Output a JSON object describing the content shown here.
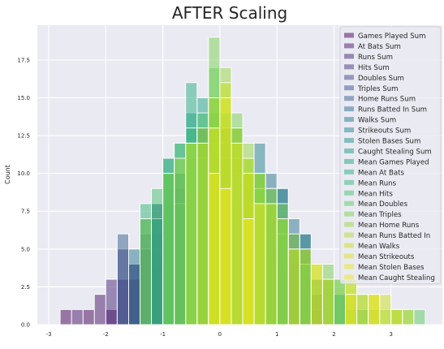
{
  "chart_data": {
    "type": "bar",
    "title": "AFTER Scaling",
    "xlabel": "",
    "ylabel": "Count",
    "xlim": [
      -3.2,
      3.9
    ],
    "ylim": [
      0,
      19.8
    ],
    "x_ticks": [
      -3,
      -2,
      -1,
      0,
      1,
      2,
      3
    ],
    "y_ticks": [
      0.0,
      2.5,
      5.0,
      7.5,
      10.0,
      12.5,
      15.0,
      17.5
    ],
    "y_tick_labels": [
      "0.0",
      "2.5",
      "5.0",
      "7.5",
      "10.0",
      "12.5",
      "15.0",
      "17.5"
    ],
    "grid": true,
    "background": "#eaeaf2",
    "legend_position": "upper right",
    "series": [
      {
        "name": "Games Played Sum",
        "color": "#440154",
        "bars": [
          [
            -2.8,
            -2.6,
            1
          ],
          [
            -2.4,
            -2.2,
            1
          ],
          [
            -2.0,
            -1.8,
            1
          ],
          [
            -1.6,
            -1.4,
            3
          ],
          [
            -1.2,
            -1.0,
            4
          ],
          [
            -0.8,
            -0.6,
            8
          ],
          [
            -0.4,
            -0.2,
            13
          ],
          [
            0.0,
            0.2,
            10
          ],
          [
            0.4,
            0.6,
            6
          ],
          [
            0.8,
            1.0,
            5
          ],
          [
            1.2,
            1.4,
            3
          ],
          [
            1.6,
            1.8,
            2
          ]
        ]
      },
      {
        "name": "At Bats Sum",
        "color": "#471365",
        "bars": [
          [
            -2.6,
            -2.4,
            1
          ],
          [
            -2.2,
            -2.0,
            2
          ],
          [
            -1.8,
            -1.6,
            3
          ],
          [
            -1.4,
            -1.2,
            5
          ],
          [
            -1.0,
            -0.8,
            6
          ],
          [
            -0.6,
            -0.4,
            9
          ],
          [
            -0.2,
            0.0,
            11
          ],
          [
            0.2,
            0.4,
            8
          ],
          [
            0.6,
            0.8,
            5
          ],
          [
            1.0,
            1.2,
            4
          ],
          [
            1.4,
            1.6,
            2
          ]
        ]
      },
      {
        "name": "Runs Sum",
        "color": "#482475",
        "bars": [
          [
            -2.0,
            -1.8,
            3
          ],
          [
            -1.6,
            -1.4,
            4
          ],
          [
            -1.2,
            -1.0,
            6
          ],
          [
            -0.8,
            -0.6,
            9
          ],
          [
            -0.4,
            -0.2,
            12
          ],
          [
            0.0,
            0.2,
            13
          ],
          [
            0.4,
            0.6,
            9
          ],
          [
            0.8,
            1.0,
            7
          ],
          [
            1.2,
            1.4,
            4
          ],
          [
            1.6,
            1.8,
            1
          ]
        ]
      },
      {
        "name": "Hits Sum",
        "color": "#463480",
        "bars": [
          [
            -1.8,
            -1.6,
            5
          ],
          [
            -1.4,
            -1.2,
            6
          ],
          [
            -1.0,
            -0.8,
            8
          ],
          [
            -0.6,
            -0.4,
            10
          ],
          [
            -0.2,
            0.0,
            14
          ],
          [
            0.2,
            0.4,
            11
          ],
          [
            0.6,
            0.8,
            7
          ],
          [
            1.0,
            1.2,
            6
          ],
          [
            1.4,
            1.6,
            3
          ]
        ]
      },
      {
        "name": "Doubles Sum",
        "color": "#414487",
        "bars": [
          [
            -1.6,
            -1.4,
            4
          ],
          [
            -1.2,
            -1.0,
            7
          ],
          [
            -0.8,
            -0.6,
            9
          ],
          [
            -0.4,
            -0.2,
            11
          ],
          [
            0.0,
            0.2,
            12
          ],
          [
            0.4,
            0.6,
            8
          ],
          [
            0.8,
            1.0,
            6
          ],
          [
            1.2,
            1.4,
            4
          ],
          [
            1.6,
            1.8,
            2
          ]
        ]
      },
      {
        "name": "Triples Sum",
        "color": "#3b528b",
        "bars": [
          [
            -1.4,
            -1.2,
            5
          ],
          [
            -1.0,
            -0.8,
            9
          ],
          [
            -0.6,
            -0.4,
            10
          ],
          [
            -0.2,
            0.0,
            12
          ],
          [
            0.2,
            0.4,
            13
          ],
          [
            0.6,
            0.8,
            9
          ],
          [
            1.0,
            1.2,
            7
          ],
          [
            1.4,
            1.6,
            5
          ]
        ]
      },
      {
        "name": "Home Runs Sum",
        "color": "#355f8d",
        "bars": [
          [
            -1.8,
            -1.6,
            6
          ],
          [
            -1.2,
            -1.0,
            8
          ],
          [
            -0.8,
            -0.6,
            10
          ],
          [
            -0.4,
            -0.2,
            12
          ],
          [
            0.0,
            0.2,
            11
          ],
          [
            0.4,
            0.6,
            10
          ],
          [
            0.8,
            1.0,
            8
          ],
          [
            1.2,
            1.4,
            6
          ]
        ]
      },
      {
        "name": "Runs Batted In Sum",
        "color": "#2f6c8e",
        "bars": [
          [
            -1.4,
            -1.2,
            7
          ],
          [
            -1.0,
            -0.8,
            10
          ],
          [
            -0.6,
            -0.4,
            11
          ],
          [
            -0.2,
            0.0,
            13
          ],
          [
            0.2,
            0.4,
            12
          ],
          [
            0.6,
            0.8,
            10
          ],
          [
            1.0,
            1.2,
            9
          ],
          [
            1.4,
            1.6,
            6
          ]
        ]
      },
      {
        "name": "Walks Sum",
        "color": "#2a788e",
        "bars": [
          [
            -1.6,
            -1.4,
            5
          ],
          [
            -1.2,
            -1.0,
            8
          ],
          [
            -0.8,
            -0.6,
            10
          ],
          [
            -0.4,
            -0.2,
            11
          ],
          [
            0.0,
            0.2,
            12
          ],
          [
            0.4,
            0.6,
            10
          ],
          [
            0.8,
            1.0,
            10
          ],
          [
            1.2,
            1.4,
            7
          ]
        ]
      },
      {
        "name": "Strikeouts Sum",
        "color": "#25838e",
        "bars": [
          [
            -1.0,
            -0.8,
            10
          ],
          [
            -0.6,
            -0.4,
            11
          ],
          [
            -0.2,
            0.0,
            12
          ],
          [
            0.2,
            0.4,
            10
          ],
          [
            0.6,
            0.8,
            12
          ],
          [
            1.0,
            1.2,
            9
          ],
          [
            1.4,
            1.6,
            6
          ],
          [
            1.8,
            2.0,
            3
          ]
        ]
      },
      {
        "name": "Stolen Bases Sum",
        "color": "#21918c",
        "bars": [
          [
            -1.2,
            -1.0,
            7
          ],
          [
            -0.8,
            -0.6,
            8
          ],
          [
            -0.4,
            -0.2,
            12
          ],
          [
            0.0,
            0.2,
            11
          ],
          [
            0.4,
            0.6,
            10
          ],
          [
            0.8,
            1.0,
            9
          ],
          [
            1.2,
            1.4,
            5
          ],
          [
            1.6,
            1.8,
            3
          ],
          [
            2.0,
            2.2,
            2
          ]
        ]
      },
      {
        "name": "Caught Stealing Sum",
        "color": "#1e9c89",
        "bars": [
          [
            -1.0,
            -0.8,
            11
          ],
          [
            -0.6,
            -0.4,
            14
          ],
          [
            -0.2,
            0.0,
            13
          ],
          [
            0.2,
            0.4,
            11
          ],
          [
            0.6,
            0.8,
            9
          ],
          [
            1.0,
            1.2,
            7
          ],
          [
            1.4,
            1.6,
            4
          ],
          [
            1.8,
            2.0,
            3
          ],
          [
            2.2,
            2.4,
            1
          ]
        ]
      },
      {
        "name": "Mean Games Played",
        "color": "#20a486",
        "bars": [
          [
            -0.8,
            -0.6,
            12
          ],
          [
            -0.4,
            -0.2,
            15
          ],
          [
            0.0,
            0.2,
            14
          ],
          [
            0.4,
            0.6,
            10
          ],
          [
            0.8,
            1.0,
            8
          ],
          [
            1.2,
            1.4,
            5
          ],
          [
            1.6,
            1.8,
            3
          ],
          [
            2.0,
            2.2,
            2
          ],
          [
            2.4,
            2.6,
            1
          ]
        ]
      },
      {
        "name": "Mean At Bats",
        "color": "#28ae80",
        "bars": [
          [
            -0.6,
            -0.4,
            16
          ],
          [
            -0.2,
            0.0,
            14
          ],
          [
            0.2,
            0.4,
            11
          ],
          [
            0.6,
            0.8,
            9
          ],
          [
            1.0,
            1.2,
            6
          ],
          [
            1.4,
            1.6,
            4
          ],
          [
            1.8,
            2.0,
            3
          ],
          [
            2.6,
            2.8,
            1
          ],
          [
            3.0,
            3.2,
            1
          ]
        ]
      },
      {
        "name": "Mean Runs",
        "color": "#35b779",
        "bars": [
          [
            -1.4,
            -1.2,
            8
          ],
          [
            -1.0,
            -0.8,
            11
          ],
          [
            -0.6,
            -0.4,
            13
          ],
          [
            -0.2,
            0.0,
            15
          ],
          [
            0.2,
            0.4,
            12
          ],
          [
            0.6,
            0.8,
            10
          ],
          [
            1.0,
            1.2,
            7
          ],
          [
            1.8,
            2.0,
            3
          ],
          [
            2.2,
            2.4,
            2
          ]
        ]
      },
      {
        "name": "Mean Hits",
        "color": "#47c16e",
        "bars": [
          [
            -1.2,
            -1.0,
            9
          ],
          [
            -0.8,
            -0.6,
            12
          ],
          [
            -0.4,
            -0.2,
            14
          ],
          [
            0.0,
            0.2,
            13
          ],
          [
            0.4,
            0.6,
            11
          ],
          [
            0.8,
            1.0,
            8
          ],
          [
            2.0,
            2.2,
            3
          ],
          [
            3.2,
            3.4,
            1
          ]
        ]
      },
      {
        "name": "Mean Doubles",
        "color": "#5ec962",
        "bars": [
          [
            -1.0,
            -0.8,
            10
          ],
          [
            -0.6,
            -0.4,
            12
          ],
          [
            -0.2,
            0.0,
            17
          ],
          [
            0.2,
            0.4,
            13
          ],
          [
            0.6,
            0.8,
            9
          ],
          [
            1.4,
            1.6,
            5
          ],
          [
            2.4,
            2.6,
            2
          ],
          [
            3.4,
            3.6,
            1
          ]
        ]
      },
      {
        "name": "Mean Triples",
        "color": "#7ad151",
        "bars": [
          [
            -1.4,
            -1.2,
            7
          ],
          [
            -1.0,
            -0.8,
            10
          ],
          [
            -0.6,
            -0.4,
            12
          ],
          [
            -0.2,
            0.0,
            19
          ],
          [
            0.2,
            0.4,
            14
          ],
          [
            0.6,
            0.8,
            10
          ],
          [
            1.0,
            1.2,
            8
          ],
          [
            1.8,
            2.0,
            4
          ],
          [
            2.6,
            2.8,
            2
          ]
        ]
      },
      {
        "name": "Mean Home Runs",
        "color": "#95d840",
        "bars": [
          [
            -0.8,
            -0.6,
            11
          ],
          [
            -0.4,
            -0.2,
            13
          ],
          [
            0.0,
            0.2,
            17
          ],
          [
            0.4,
            0.6,
            12
          ],
          [
            0.8,
            1.0,
            9
          ],
          [
            1.2,
            1.4,
            6
          ],
          [
            2.0,
            2.2,
            3
          ],
          [
            2.8,
            3.0,
            1
          ]
        ]
      },
      {
        "name": "Mean Runs Batted In",
        "color": "#b0dd2f",
        "bars": [
          [
            -0.6,
            -0.4,
            12
          ],
          [
            -0.2,
            0.0,
            15
          ],
          [
            0.2,
            0.4,
            13
          ],
          [
            0.6,
            0.8,
            10
          ],
          [
            1.0,
            1.2,
            7
          ],
          [
            1.6,
            1.8,
            4
          ],
          [
            2.2,
            2.4,
            3
          ],
          [
            3.0,
            3.2,
            1
          ]
        ]
      },
      {
        "name": "Mean Walks",
        "color": "#cae11f",
        "bars": [
          [
            -0.4,
            -0.2,
            12
          ],
          [
            0.0,
            0.2,
            16
          ],
          [
            0.4,
            0.6,
            11
          ],
          [
            0.8,
            1.0,
            8
          ],
          [
            1.4,
            1.6,
            5
          ],
          [
            2.2,
            2.4,
            3
          ],
          [
            2.8,
            3.0,
            2
          ],
          [
            3.2,
            3.4,
            1
          ]
        ]
      },
      {
        "name": "Mean Strikeouts",
        "color": "#dfe318",
        "bars": [
          [
            -0.2,
            0.0,
            13
          ],
          [
            0.0,
            0.2,
            15
          ],
          [
            0.4,
            0.6,
            10
          ],
          [
            1.2,
            1.4,
            5
          ],
          [
            2.4,
            2.6,
            2
          ],
          [
            3.0,
            3.2,
            1
          ]
        ]
      },
      {
        "name": "Mean Stolen Bases",
        "color": "#e7e419",
        "bars": [
          [
            -0.2,
            0.0,
            10
          ],
          [
            0.2,
            0.4,
            12
          ],
          [
            0.6,
            0.8,
            8
          ],
          [
            1.6,
            1.8,
            4
          ],
          [
            2.6,
            2.8,
            2
          ]
        ]
      },
      {
        "name": "Mean Caught Stealing",
        "color": "#f0e51f",
        "bars": [
          [
            0.0,
            0.2,
            9
          ],
          [
            0.4,
            0.6,
            7
          ],
          [
            1.8,
            2.0,
            3
          ],
          [
            2.2,
            2.4,
            2
          ],
          [
            2.6,
            2.8,
            2
          ]
        ]
      }
    ]
  }
}
